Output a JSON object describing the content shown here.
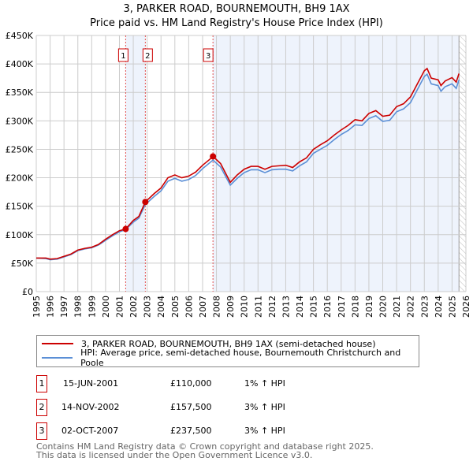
{
  "title": "3, PARKER ROAD, BOURNEMOUTH, BH9 1AX",
  "subtitle": "Price paid vs. HM Land Registry's House Price Index (HPI)",
  "chart_data": {
    "type": "line",
    "title": "3, PARKER ROAD, BOURNEMOUTH, BH9 1AX",
    "subtitle": "Price paid vs. HM Land Registry's House Price Index (HPI)",
    "xlim": [
      1995,
      2026
    ],
    "ylim": [
      0,
      450000
    ],
    "grid": true,
    "x_ticks": [
      "1995",
      "1996",
      "1997",
      "1998",
      "1999",
      "2000",
      "2001",
      "2002",
      "2003",
      "2004",
      "2005",
      "2006",
      "2007",
      "2008",
      "2009",
      "2010",
      "2011",
      "2012",
      "2013",
      "2014",
      "2015",
      "2016",
      "2017",
      "2018",
      "2019",
      "2020",
      "2021",
      "2022",
      "2023",
      "2024",
      "2025",
      "2026"
    ],
    "y_ticks": [
      {
        "v": 0,
        "l": "£0"
      },
      {
        "v": 50000,
        "l": "£50K"
      },
      {
        "v": 100000,
        "l": "£100K"
      },
      {
        "v": 150000,
        "l": "£150K"
      },
      {
        "v": 200000,
        "l": "£200K"
      },
      {
        "v": 250000,
        "l": "£250K"
      },
      {
        "v": 300000,
        "l": "£300K"
      },
      {
        "v": 350000,
        "l": "£350K"
      },
      {
        "v": 400000,
        "l": "£400K"
      },
      {
        "v": 450000,
        "l": "£450K"
      }
    ],
    "series": [
      {
        "name": "3, PARKER ROAD, BOURNEMOUTH, BH9 1AX (semi-detached house)",
        "color": "#cc0000",
        "x": [
          1995,
          1995.7,
          1996,
          1996.5,
          1997,
          1997.5,
          1998,
          1998.5,
          1999,
          1999.5,
          2000,
          2000.5,
          2001,
          2001.45,
          2002,
          2002.4,
          2002.87,
          2003.5,
          2004,
          2004.5,
          2005,
          2005.5,
          2006,
          2006.5,
          2007,
          2007.5,
          2007.75,
          2008.3,
          2009.0,
          2009.5,
          2010,
          2010.5,
          2011,
          2011.5,
          2012,
          2012.5,
          2013,
          2013.5,
          2014,
          2014.5,
          2015,
          2015.5,
          2016,
          2016.5,
          2017,
          2017.5,
          2018,
          2018.5,
          2019,
          2019.5,
          2020,
          2020.5,
          2021,
          2021.5,
          2022,
          2022.5,
          2023,
          2023.2,
          2023.5,
          2024,
          2024.2,
          2024.5,
          2025,
          2025.3,
          2025.5
        ],
        "y": [
          59000,
          59000,
          57000,
          58000,
          62000,
          66000,
          73000,
          76000,
          78000,
          83000,
          92000,
          100000,
          107000,
          110000,
          125000,
          132000,
          157500,
          172000,
          182000,
          200000,
          205000,
          200000,
          203000,
          210000,
          222000,
          232000,
          237500,
          225000,
          192000,
          205000,
          215000,
          220000,
          220000,
          215000,
          220000,
          221000,
          222000,
          218000,
          228000,
          235000,
          250000,
          258000,
          265000,
          275000,
          284000,
          292000,
          302000,
          300000,
          313000,
          318000,
          308000,
          310000,
          325000,
          330000,
          342000,
          365000,
          388000,
          392000,
          375000,
          372000,
          362000,
          370000,
          376000,
          368000,
          383000
        ]
      },
      {
        "name": "HPI: Average price, semi-detached house, Bournemouth Christchurch and Poole",
        "color": "#5b8fd6",
        "x": [
          1995,
          1995.7,
          1996,
          1996.5,
          1997,
          1997.5,
          1998,
          1998.5,
          1999,
          1999.5,
          2000,
          2000.5,
          2001,
          2001.45,
          2002,
          2002.4,
          2002.87,
          2003.5,
          2004,
          2004.5,
          2005,
          2005.5,
          2006,
          2006.5,
          2007,
          2007.5,
          2007.75,
          2008.3,
          2009.0,
          2009.5,
          2010,
          2010.5,
          2011,
          2011.5,
          2012,
          2012.5,
          2013,
          2013.5,
          2014,
          2014.5,
          2015,
          2015.5,
          2016,
          2016.5,
          2017,
          2017.5,
          2018,
          2018.5,
          2019,
          2019.5,
          2020,
          2020.5,
          2021,
          2021.5,
          2022,
          2022.5,
          2023,
          2023.2,
          2023.5,
          2024,
          2024.2,
          2024.5,
          2025,
          2025.3,
          2025.5
        ],
        "y": [
          59000,
          58000,
          56000,
          57000,
          61000,
          65000,
          72000,
          75000,
          77000,
          82000,
          90000,
          98000,
          105000,
          109000,
          122000,
          129000,
          153000,
          167000,
          177000,
          194000,
          199000,
          194000,
          197000,
          204000,
          216000,
          226000,
          231000,
          219000,
          187000,
          199000,
          209000,
          214000,
          214000,
          209000,
          214000,
          215000,
          215000,
          212000,
          221000,
          228000,
          243000,
          250000,
          257000,
          267000,
          276000,
          283000,
          293000,
          292000,
          304000,
          309000,
          299000,
          301000,
          316000,
          321000,
          332000,
          355000,
          378000,
          382000,
          365000,
          362000,
          352000,
          360000,
          365000,
          357000,
          372000
        ]
      }
    ],
    "sales": [
      {
        "label": "1",
        "x": 2001.45,
        "y": 110000
      },
      {
        "label": "2",
        "x": 2002.87,
        "y": 157500
      },
      {
        "label": "3",
        "x": 2007.75,
        "y": 237500
      }
    ],
    "legend_position": "below"
  },
  "legend": [
    {
      "label": "3, PARKER ROAD, BOURNEMOUTH, BH9 1AX (semi-detached house)",
      "color": "#cc0000"
    },
    {
      "label": "HPI: Average price, semi-detached house, Bournemouth Christchurch and Poole",
      "color": "#5b8fd6"
    }
  ],
  "transactions": [
    {
      "num": "1",
      "date": "15-JUN-2001",
      "price": "£110,000",
      "hpi": "1% ↑ HPI"
    },
    {
      "num": "2",
      "date": "14-NOV-2002",
      "price": "£157,500",
      "hpi": "3% ↑ HPI"
    },
    {
      "num": "3",
      "date": "02-OCT-2007",
      "price": "£237,500",
      "hpi": "3% ↑ HPI"
    }
  ],
  "footer": [
    "Contains HM Land Registry data © Crown copyright and database right 2025.",
    "This data is licensed under the Open Government Licence v3.0."
  ]
}
